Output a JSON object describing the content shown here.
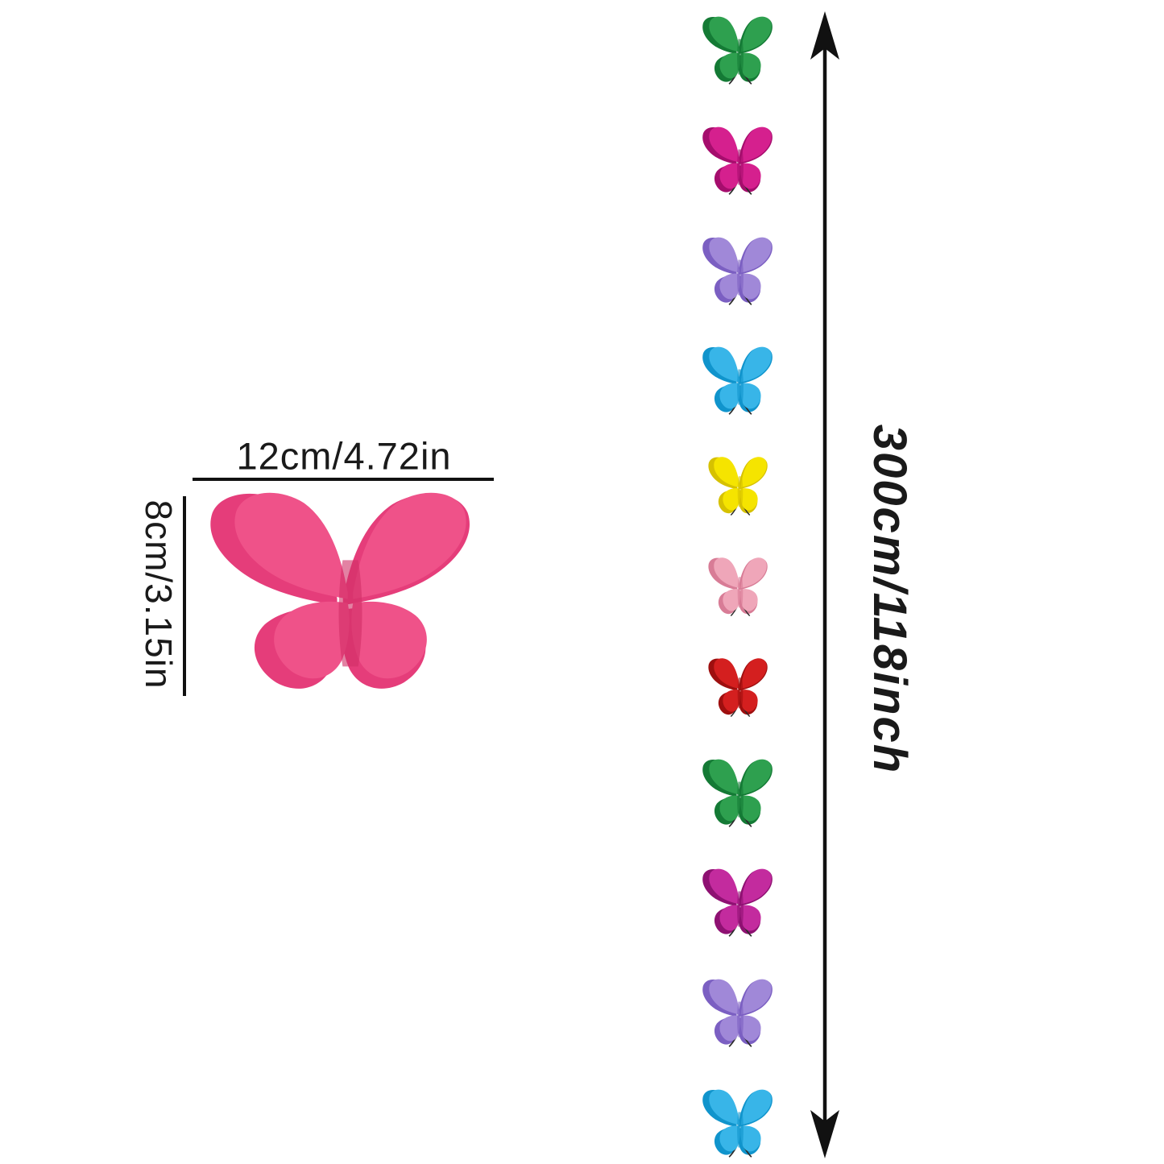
{
  "diagram": {
    "title_semantic": "butterfly-garland-dimension-diagram",
    "background_color": "#ffffff",
    "text_color": "#1a1a1a",
    "line_color": "#111111",
    "arrow_color": "#111111",
    "width_label": "12cm/4.72in",
    "height_label": "8cm/3.15in",
    "length_label": "300cm/118inch",
    "main_butterfly": {
      "color_name": "hot-pink",
      "front": "#ef5289",
      "back": "#e53d7a",
      "crease": "#d02e66"
    },
    "garland": {
      "count": 11,
      "butterflies": [
        {
          "color_name": "green",
          "front": "#2ea04f",
          "back": "#147a35"
        },
        {
          "color_name": "magenta",
          "front": "#d5208e",
          "back": "#a50d6d"
        },
        {
          "color_name": "purple",
          "front": "#a088d8",
          "back": "#7b5fc2"
        },
        {
          "color_name": "blue",
          "front": "#38b5e8",
          "back": "#1094cc"
        },
        {
          "color_name": "yellow",
          "front": "#f5e400",
          "back": "#d6c100"
        },
        {
          "color_name": "light-pink",
          "front": "#efa6b9",
          "back": "#d87c96"
        },
        {
          "color_name": "red",
          "front": "#d41f1f",
          "back": "#9e0f0f"
        },
        {
          "color_name": "green",
          "front": "#2ea04f",
          "back": "#147a35"
        },
        {
          "color_name": "magenta",
          "front": "#c32b9e",
          "back": "#8e1172"
        },
        {
          "color_name": "purple",
          "front": "#a088d8",
          "back": "#7b5fc2"
        },
        {
          "color_name": "blue",
          "front": "#38b5e8",
          "back": "#1094cc"
        }
      ]
    }
  }
}
